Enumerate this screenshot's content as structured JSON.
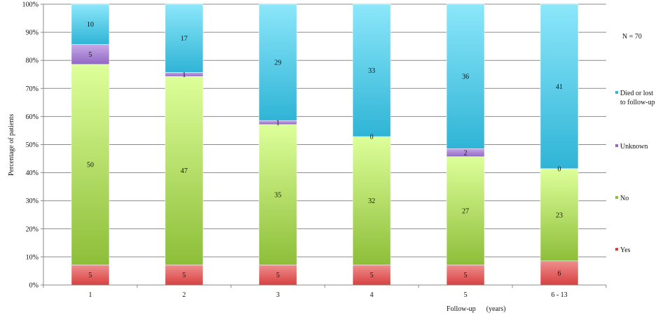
{
  "chart_data": {
    "type": "bar",
    "stacked": true,
    "percent_stacked": true,
    "n_label": "N = 70",
    "categories": [
      "1",
      "2",
      "3",
      "4",
      "5",
      "6 - 13"
    ],
    "series": [
      {
        "name": "Yes",
        "values": [
          5,
          5,
          5,
          5,
          5,
          6
        ],
        "color_top": "#ef8e8e",
        "color_bottom": "#d84040"
      },
      {
        "name": "No",
        "values": [
          50,
          47,
          35,
          32,
          27,
          23
        ],
        "color_top": "#ddff9a",
        "color_bottom": "#8dbe39"
      },
      {
        "name": "Unknown",
        "values": [
          5,
          1,
          1,
          0,
          2,
          0
        ],
        "color_top": "#c6a8e8",
        "color_bottom": "#9068c4"
      },
      {
        "name": "Died or lost to follow-up",
        "legend_lines": [
          "Died or lost",
          "to follow-up"
        ],
        "values": [
          10,
          17,
          29,
          33,
          36,
          41
        ],
        "color_top": "#8ce7fa",
        "color_bottom": "#2fb4d6"
      }
    ],
    "xlabel": "Follow-up      (years)",
    "ylabel": "Percentage of patients",
    "ylim": [
      0,
      100
    ],
    "y_ticks": [
      "0%",
      "10%",
      "20%",
      "30%",
      "40%",
      "50%",
      "60%",
      "70%",
      "80%",
      "90%",
      "100%"
    ],
    "grid": true,
    "legend_position": "right"
  }
}
